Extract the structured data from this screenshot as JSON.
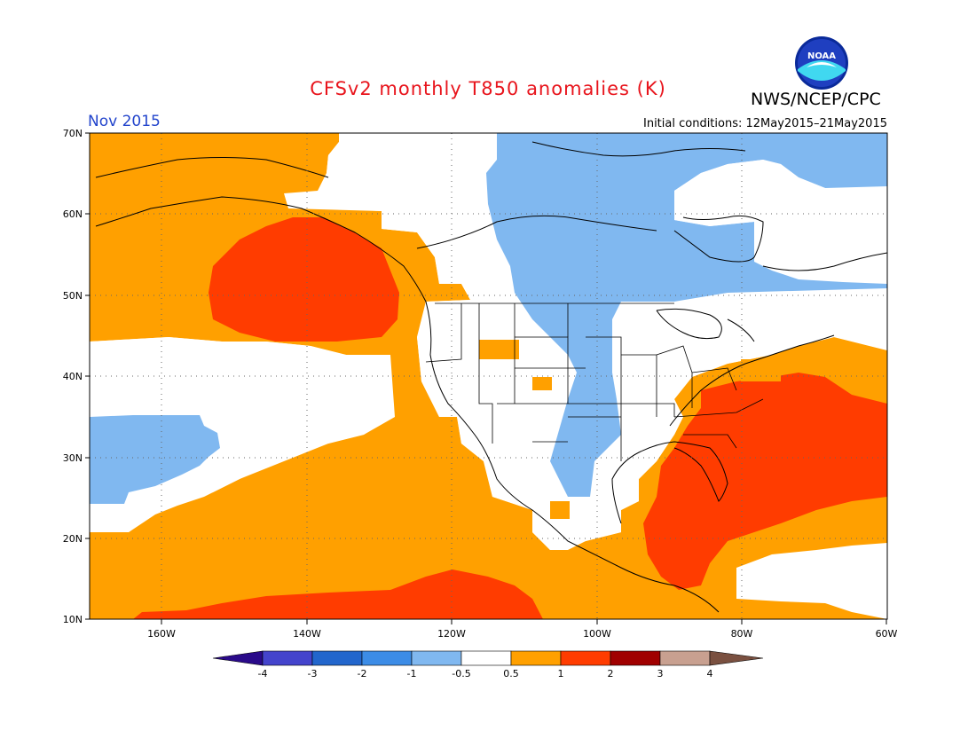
{
  "header": {
    "title": "CFSv2 monthly T850 anomalies (K)",
    "organization": "NWS/NCEP/CPC",
    "valid_month": "Nov 2015",
    "initial_conditions": "Initial conditions: 12May2015–21May2015",
    "logo_text": "NOAA"
  },
  "map": {
    "region": "North America and adjacent oceans",
    "projection": "lat-lon",
    "lat_ticks": [
      "70N",
      "60N",
      "50N",
      "40N",
      "30N",
      "20N",
      "10N"
    ],
    "lon_ticks": [
      "160W",
      "140W",
      "120W",
      "100W",
      "80W",
      "60W"
    ],
    "lat_range": [
      10,
      70
    ],
    "lon_range": [
      -170,
      -60
    ]
  },
  "colorbar": {
    "labels": [
      "-4",
      "-3",
      "-2",
      "-1",
      "-0.5",
      "0.5",
      "1",
      "2",
      "3",
      "4"
    ],
    "colors": {
      "lt_minus4": "#2a0a8a",
      "minus4_to_minus3": "#4444cc",
      "minus3_to_minus2": "#2266cc",
      "minus2_to_minus1": "#3c8ce6",
      "minus1_to_minus05": "#80b8f0",
      "neutral": "#ffffff",
      "p05_to_1": "#ffa000",
      "p1_to_2": "#ff3c00",
      "p2_to_3": "#a00000",
      "p3_to_4": "#c8a090",
      "gt_4": "#7a5040"
    }
  }
}
